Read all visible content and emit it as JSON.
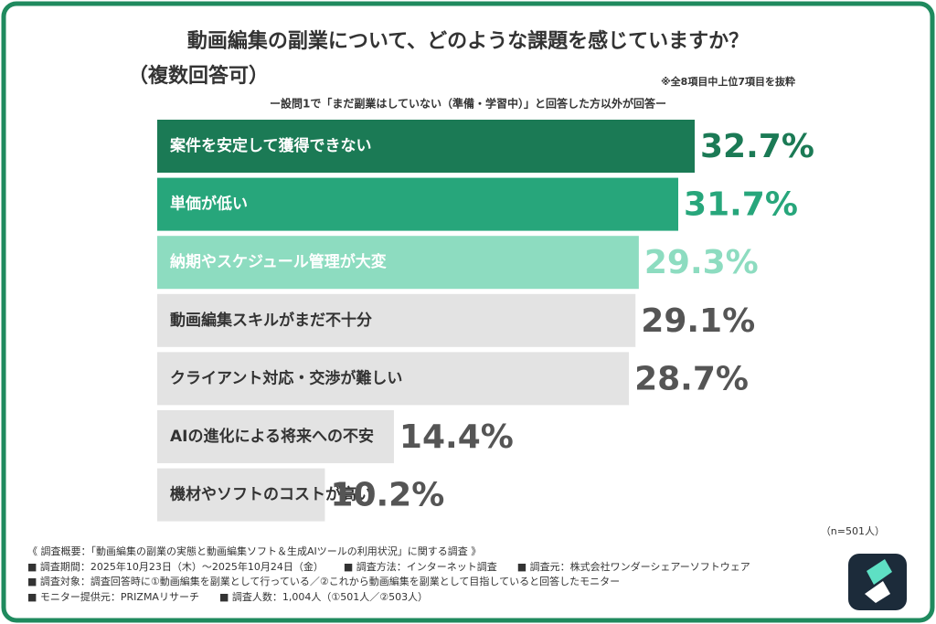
{
  "chart_data": {
    "type": "hbar",
    "title": "動画編集の副業について、どのような課題を感じていますか？",
    "title_line2": "（複数回答可）",
    "note": "※全8項目中上位7項目を抜粋",
    "subtitle": "ー設問1で「まだ副業はしていない（準備・学習中）」と回答した方以外が回答ー",
    "sample_size": "（n=501人）",
    "categories": [
      "案件を安定して獲得できない",
      "単価が低い",
      "納期やスケジュール管理が大変",
      "動画編集スキルがまだ不十分",
      "クライアント対応・交渉が難しい",
      "AIの進化による将来への不安",
      "機材やソフトのコストが高い"
    ],
    "values": [
      32.7,
      31.7,
      29.3,
      29.1,
      28.7,
      14.4,
      10.2
    ],
    "value_labels": [
      "32.7%",
      "31.7%",
      "29.3%",
      "29.1%",
      "28.7%",
      "14.4%",
      "10.2%"
    ],
    "colors": [
      "#1b7a55",
      "#27a67b",
      "#8ddcc0",
      "#e3e3e3",
      "#e3e3e3",
      "#e3e3e3",
      "#e3e3e3"
    ],
    "text_colors": [
      "#ffffff",
      "#ffffff",
      "#ffffff",
      "#333333",
      "#333333",
      "#333333",
      "#333333"
    ],
    "label_colors": [
      "#1b7a55",
      "#27a67b",
      "#8ddcc0",
      "#555555",
      "#555555",
      "#555555",
      "#555555"
    ]
  },
  "footer": [
    [
      "《 調査概要：「動画編集の副業の実態と動画編集ソフト＆生成AIツールの利用状況」に関する調査 》"
    ],
    [
      "■ 調査期間：2025年10月23日（木）～2025年10月24日（金）",
      "■ 調査方法：インターネット調査",
      "■ 調査元：株式会社ワンダーシェアーソフトウェア"
    ],
    [
      "■ 調査対象：調査回答時に①動画編集を副業として行っている／②これから動画編集を副業として目指していると回答したモニター"
    ],
    [
      "■ モニター提供元：PRIZMAリサーチ",
      "■ 調査人数：1,004人（①501人／②503人）"
    ]
  ]
}
